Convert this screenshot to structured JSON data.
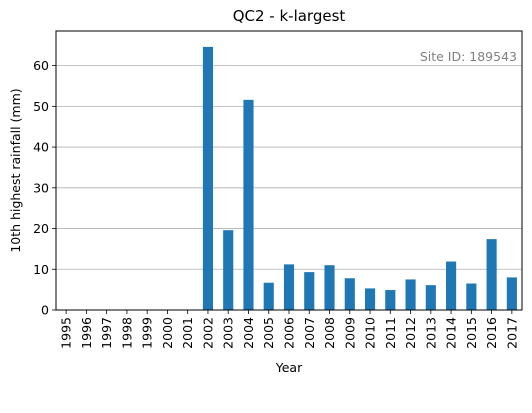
{
  "chart_data": {
    "type": "bar",
    "title": "QC2 - k-largest",
    "xlabel": "Year",
    "ylabel": "10th highest rainfall (mm)",
    "annotation": "Site ID: 189543",
    "categories": [
      "1995",
      "1996",
      "1997",
      "1998",
      "1999",
      "2000",
      "2001",
      "2002",
      "2003",
      "2004",
      "2005",
      "2006",
      "2007",
      "2008",
      "2009",
      "2010",
      "2011",
      "2012",
      "2013",
      "2014",
      "2015",
      "2016",
      "2017"
    ],
    "values": [
      0,
      0,
      0,
      0,
      0,
      0,
      0,
      64.6,
      19.6,
      51.6,
      6.7,
      11.2,
      9.3,
      11.0,
      7.8,
      5.3,
      4.9,
      7.5,
      6.1,
      11.9,
      6.5,
      17.4,
      8.0
    ],
    "ylim": [
      0,
      68.5
    ],
    "yticks": [
      0,
      10,
      20,
      30,
      40,
      50,
      60
    ],
    "grid": "y",
    "bar_color": "#1f77b4"
  }
}
